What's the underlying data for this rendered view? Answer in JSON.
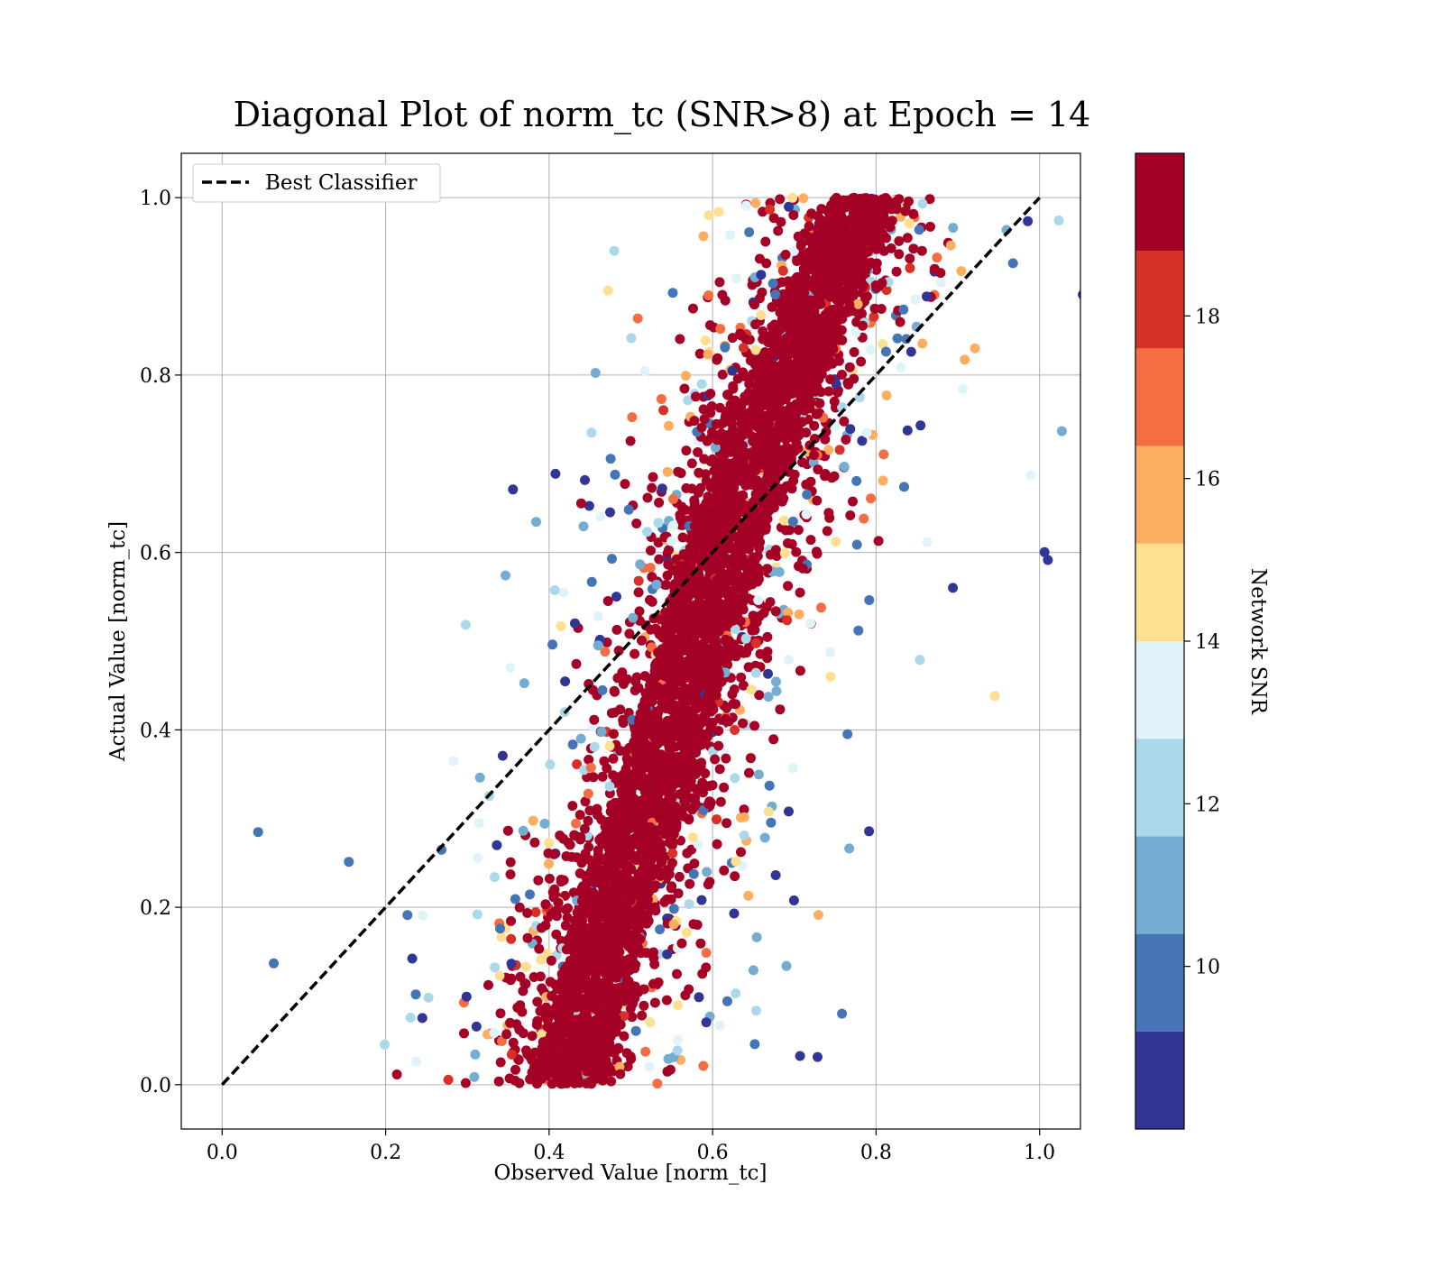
{
  "chart_data": {
    "type": "scatter",
    "title": "Diagonal Plot of norm_tc (SNR>8) at Epoch = 14",
    "xlabel": "Observed Value [norm_tc]",
    "ylabel": "Actual Value [norm_tc]",
    "xlim": [
      -0.05,
      1.05
    ],
    "ylim": [
      -0.05,
      1.05
    ],
    "xticks": [
      0.0,
      0.2,
      0.4,
      0.6,
      0.8,
      1.0
    ],
    "yticks": [
      0.0,
      0.2,
      0.4,
      0.6,
      0.8,
      1.0
    ],
    "xtick_labels": [
      "0.0",
      "0.2",
      "0.4",
      "0.6",
      "0.8",
      "1.0"
    ],
    "ytick_labels": [
      "0.0",
      "0.2",
      "0.4",
      "0.6",
      "0.8",
      "1.0"
    ],
    "grid": true,
    "legend": {
      "placement": "upper-left",
      "entries": [
        "Best Classifier"
      ]
    },
    "reference_line": {
      "name": "Best Classifier",
      "style": "dashed",
      "color": "#000000",
      "x": [
        0.0,
        1.0
      ],
      "y": [
        0.0,
        1.0
      ]
    },
    "scatter_trend": {
      "description": "dense band of points; observed value increases with actual value",
      "actual": [
        0.0,
        0.2,
        0.4,
        0.6,
        0.8,
        1.0
      ],
      "observed_center": [
        0.42,
        0.48,
        0.55,
        0.61,
        0.69,
        0.79
      ],
      "band_half_width": 0.05
    },
    "colorbar": {
      "label": "Network SNR",
      "range": [
        8,
        20
      ],
      "tick_values": [
        10,
        12,
        14,
        16,
        18
      ],
      "tick_labels": [
        "10",
        "12",
        "14",
        "16",
        "18"
      ],
      "bin_colors": [
        "#313695",
        "#4575b4",
        "#74add1",
        "#abd9e9",
        "#e0f3f8",
        "#fee090",
        "#fdae61",
        "#f46d43",
        "#d73027",
        "#a50026"
      ]
    }
  }
}
